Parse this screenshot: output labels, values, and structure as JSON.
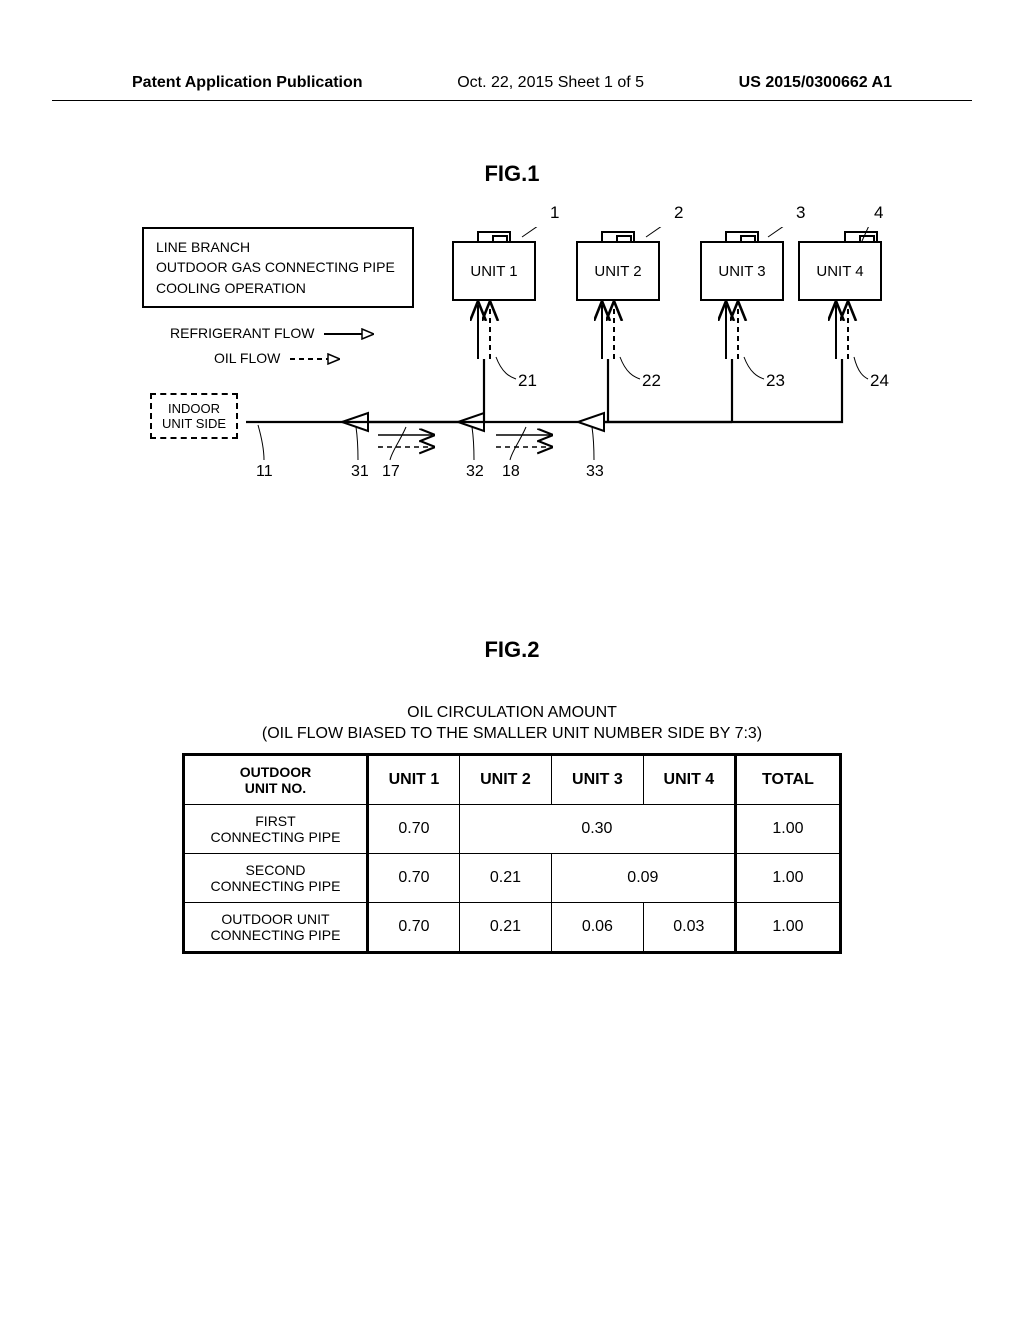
{
  "header": {
    "left": "Patent Application Publication",
    "center": "Oct. 22, 2015  Sheet 1 of 5",
    "right": "US 2015/0300662 A1"
  },
  "fig1": {
    "label": "FIG.1",
    "legend": {
      "l1": "LINE BRANCH",
      "l2": "OUTDOOR GAS CONNECTING PIPE",
      "l3": "COOLING OPERATION"
    },
    "flow": {
      "refrigerant": "REFRIGERANT FLOW",
      "oil": "OIL FLOW"
    },
    "indoor": {
      "l1": "INDOOR",
      "l2": "UNIT SIDE"
    },
    "units": {
      "u1": "UNIT 1",
      "u2": "UNIT 2",
      "u3": "UNIT 3",
      "u4": "UNIT 4"
    },
    "callouts": {
      "n1": "1",
      "n2": "2",
      "n3": "3",
      "n4": "4",
      "n21": "21",
      "n22": "22",
      "n23": "23",
      "n24": "24"
    },
    "bottom": {
      "b11": "11",
      "b31": "31",
      "b17": "17",
      "b32": "32",
      "b18": "18",
      "b33": "33"
    },
    "colors": {
      "stroke": "#000000",
      "bg": "#ffffff"
    }
  },
  "fig2": {
    "label": "FIG.2",
    "caption_l1": "OIL CIRCULATION AMOUNT",
    "caption_l2": "(OIL FLOW BIASED TO THE SMALLER UNIT NUMBER SIDE BY 7:3)",
    "headers": {
      "rowhdr": "OUTDOOR\nUNIT NO.",
      "u1": "UNIT 1",
      "u2": "UNIT 2",
      "u3": "UNIT 3",
      "u4": "UNIT 4",
      "total": "TOTAL"
    },
    "rows": [
      {
        "name": "FIRST\nCONNECTING PIPE",
        "cells": [
          "0.70",
          {
            "span": 3,
            "val": "0.30"
          }
        ],
        "total": "1.00"
      },
      {
        "name": "SECOND\nCONNECTING PIPE",
        "cells": [
          "0.70",
          "0.21",
          {
            "span": 2,
            "val": "0.09"
          }
        ],
        "total": "1.00"
      },
      {
        "name": "OUTDOOR UNIT\nCONNECTING PIPE",
        "cells": [
          "0.70",
          "0.21",
          "0.06",
          "0.03"
        ],
        "total": "1.00"
      }
    ],
    "style": {
      "border_color": "#000000",
      "font_size_header": 16,
      "font_size_body": 16
    }
  }
}
